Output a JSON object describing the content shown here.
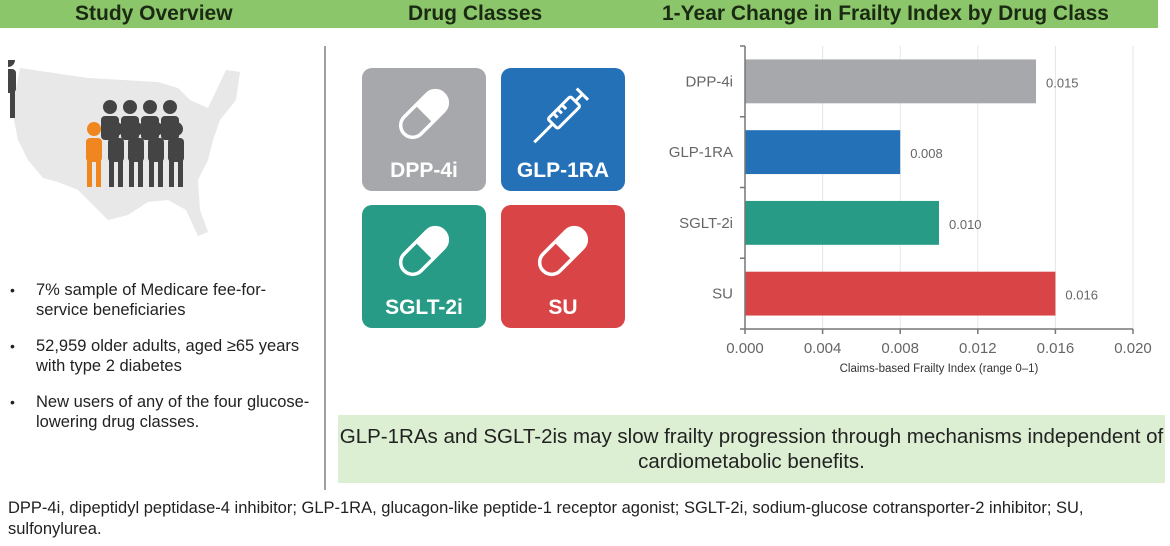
{
  "headers": {
    "overview": "Study Overview",
    "classes": "Drug Classes",
    "chart": "1-Year Change in Frailty Index by Drug Class"
  },
  "overview": {
    "bullets": [
      "7% sample of Medicare fee-for-service beneficiaries",
      "52,959 older adults, aged ≥65 years with type 2 diabetes",
      "New users of any of the four glucose-lowering drug classes."
    ],
    "icons": [
      "us-map-icon",
      "people-group-icon"
    ],
    "colors": {
      "highlight_person": "#f0861f",
      "people": "#444444",
      "map": "#e8e8e8"
    }
  },
  "drug_tiles": [
    {
      "label": "DPP-4i",
      "icon": "capsule-icon",
      "color": "#a7a8ab"
    },
    {
      "label": "GLP-1RA",
      "icon": "syringe-icon",
      "color": "#2471b8"
    },
    {
      "label": "SGLT-2i",
      "icon": "capsule-icon",
      "color": "#279b86"
    },
    {
      "label": "SU",
      "icon": "capsule-icon",
      "color": "#d94547"
    }
  ],
  "chart_data": {
    "type": "bar",
    "orientation": "horizontal",
    "title": "1-Year Change in Frailty Index by Drug Class",
    "categories": [
      "DPP-4i",
      "GLP-1RA",
      "SGLT-2i",
      "SU"
    ],
    "values": [
      0.015,
      0.008,
      0.01,
      0.016
    ],
    "data_labels": [
      "0.015",
      "0.008",
      "0.010",
      "0.016"
    ],
    "colors": [
      "#a7a8ab",
      "#2471b8",
      "#279b86",
      "#d94547"
    ],
    "xlabel": "Claims-based Frailty Index (range 0–1)",
    "xlim": [
      0,
      0.02
    ],
    "xticks": [
      "0.000",
      "0.004",
      "0.008",
      "0.012",
      "0.016",
      "0.020"
    ],
    "grid": true
  },
  "conclusion": "GLP-1RAs and SGLT-2is may slow frailty progression through mechanisms independent of cardiometabolic benefits.",
  "footnote": "DPP-4i, dipeptidyl peptidase-4 inhibitor; GLP-1RA, glucagon-like peptide-1 receptor agonist; SGLT-2i, sodium-glucose cotransporter-2 inhibitor; SU, sulfonylurea."
}
